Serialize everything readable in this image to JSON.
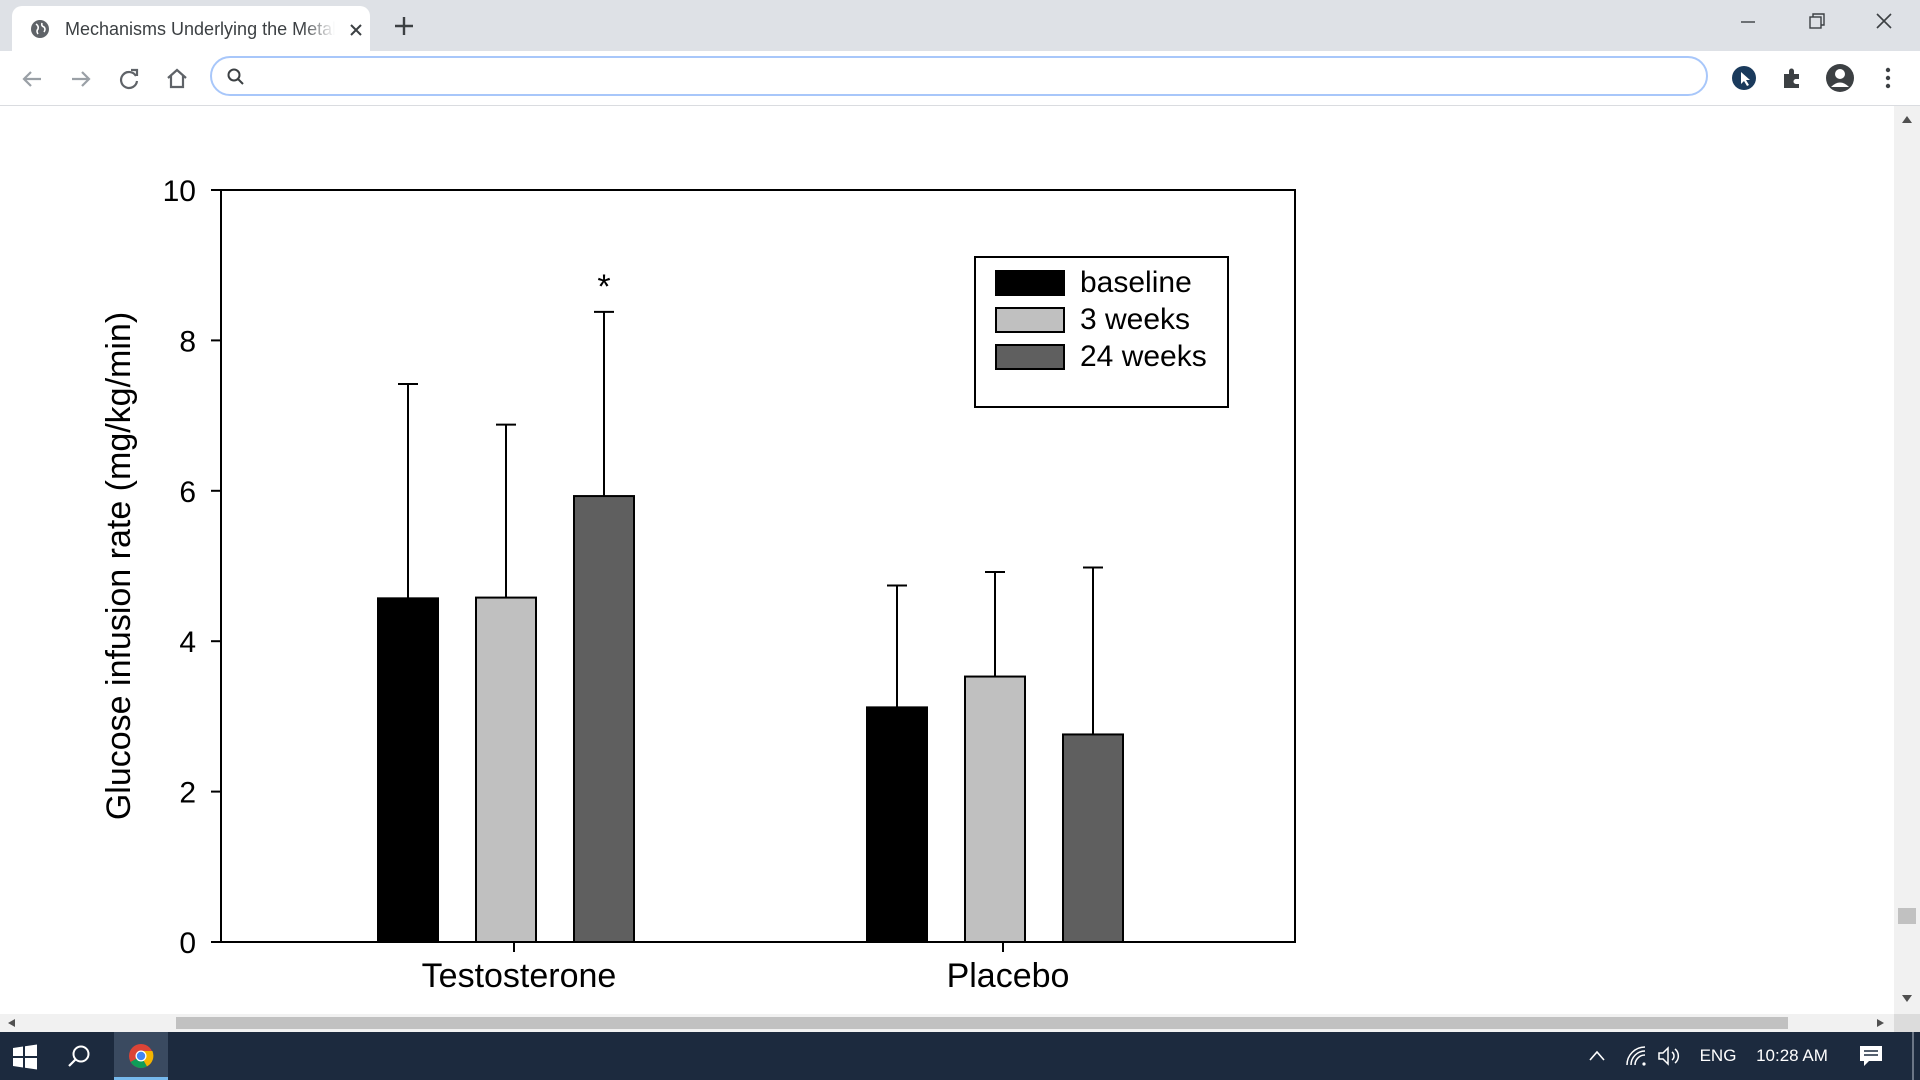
{
  "browser": {
    "tab": {
      "title": "Mechanisms Underlying the Metabolic Actions of Testosterone",
      "favicon": "globe-icon",
      "close_icon": "close-icon"
    },
    "new_tab_icon": "plus-icon",
    "window_controls": [
      "minimize-icon",
      "restore-icon",
      "close-icon"
    ],
    "nav": [
      "back-arrow-icon",
      "forward-arrow-icon",
      "reload-icon",
      "home-icon"
    ],
    "omnibox": {
      "value": "",
      "placeholder": "",
      "icon": "search-icon"
    },
    "toolbar_icons": [
      "cursor-extension-icon",
      "puzzle-extensions-icon",
      "profile-avatar-icon",
      "kebab-menu-icon"
    ]
  },
  "chart_data": {
    "type": "bar",
    "title": "",
    "xlabel": "",
    "ylabel": "Glucose infusion rate (mg/kg/min)",
    "ylim": [
      0,
      10
    ],
    "yticks": [
      "0",
      "2",
      "4",
      "6",
      "8",
      "10"
    ],
    "categories": [
      "Testosterone",
      "Placebo"
    ],
    "series": [
      {
        "name": "baseline",
        "values": [
          4.57,
          3.12
        ],
        "errors": [
          2.85,
          1.62
        ],
        "color": "#000000"
      },
      {
        "name": "3 weeks",
        "values": [
          4.58,
          3.53
        ],
        "errors": [
          2.3,
          1.39
        ],
        "color": "#c0c0c0"
      },
      {
        "name": "24 weeks",
        "values": [
          5.93,
          2.76
        ],
        "errors": [
          2.45,
          2.22
        ],
        "color": "#5f5f5f"
      }
    ],
    "annotations": [
      {
        "text": "*",
        "category": "Testosterone",
        "series": "24 weeks"
      }
    ],
    "legend_position": "top-right",
    "grid": false
  },
  "taskbar": {
    "icons": [
      "windows-start-icon",
      "search-icon",
      "chrome-icon"
    ],
    "tray_icons": [
      "chevron-up-icon",
      "wifi-icon",
      "volume-icon"
    ],
    "language": "ENG",
    "time": "10:28 AM",
    "notification_icon": "notification-icon"
  }
}
